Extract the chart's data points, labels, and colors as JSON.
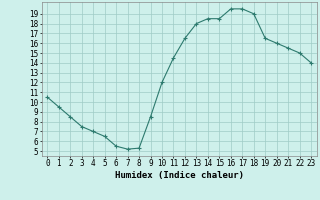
{
  "x": [
    0,
    1,
    2,
    3,
    4,
    5,
    6,
    7,
    8,
    9,
    10,
    11,
    12,
    13,
    14,
    15,
    16,
    17,
    18,
    19,
    20,
    21,
    22,
    23
  ],
  "y": [
    10.5,
    9.5,
    8.5,
    7.5,
    7.0,
    6.5,
    5.5,
    5.2,
    5.3,
    8.5,
    12.0,
    14.5,
    16.5,
    18.0,
    18.5,
    18.5,
    19.5,
    19.5,
    19.0,
    16.5,
    16.0,
    15.5,
    15.0,
    14.0
  ],
  "xlabel": "Humidex (Indice chaleur)",
  "xlim": [
    -0.5,
    23.5
  ],
  "ylim": [
    4.5,
    20.2
  ],
  "yticks": [
    5,
    6,
    7,
    8,
    9,
    10,
    11,
    12,
    13,
    14,
    15,
    16,
    17,
    18,
    19
  ],
  "xticks": [
    0,
    1,
    2,
    3,
    4,
    5,
    6,
    7,
    8,
    9,
    10,
    11,
    12,
    13,
    14,
    15,
    16,
    17,
    18,
    19,
    20,
    21,
    22,
    23
  ],
  "line_color": "#2d7a6e",
  "marker_color": "#2d7a6e",
  "bg_color": "#cef0eb",
  "grid_color": "#a0ccc6",
  "label_fontsize": 6.5,
  "tick_fontsize": 5.5
}
